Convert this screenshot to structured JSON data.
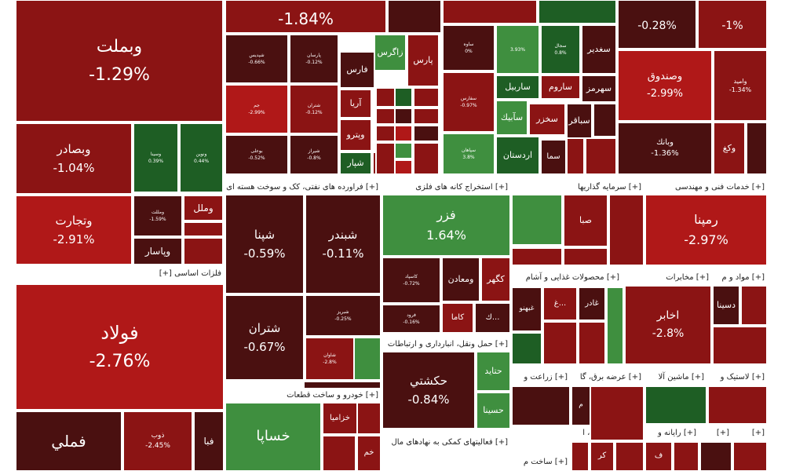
{
  "chart_data": {
    "type": "heatmap",
    "title": "",
    "color_scale": {
      "up_strong": "#2e9b2e",
      "up": "#3f8f3f",
      "up_dark": "#1e5e24",
      "flat": "#4a1010",
      "down": "#8b1414",
      "down_strong": "#b01818"
    },
    "sectors": [
      {
        "name": "فلزات اساسی [+]"
      },
      {
        "name": "[+] فراورده های نفتی، کک و سوخت هسته ای"
      },
      {
        "name": "[+] استخراج کانه های فلزی"
      },
      {
        "name": "[+] سرمایه گذاریها"
      },
      {
        "name": "[+] خدمات فنی و مهندسی"
      },
      {
        "name": "[+] محصولات غذایی و آشام"
      },
      {
        "name": "[+] مخابرات"
      },
      {
        "name": "[+] مواد و م"
      },
      {
        "name": "[+] حمل ونقل، انبارداری و ارتباطات"
      },
      {
        "name": "[+] خودرو و ساخت قطعات"
      },
      {
        "name": "[+] فعالیتهای کمکی به نهادهای مال"
      },
      {
        "name": "[+] زراعت و"
      },
      {
        "name": "[+] عرضه برق، گا"
      },
      {
        "name": "[+] ماشین آلا"
      },
      {
        "name": "[+] لاستیک و"
      },
      {
        "name": "[+] انبوه سازی، ا"
      },
      {
        "name": "[+] رایانه و"
      },
      {
        "name": "[+]"
      },
      {
        "name": "[+]"
      },
      {
        "name": "[+] ساخت م"
      }
    ],
    "tiles": [
      {
        "name": "وبملت",
        "change": "-1.29%",
        "state": "down"
      },
      {
        "name": "",
        "change": "-1.84%",
        "state": "down"
      },
      {
        "name": "",
        "change": "-0.28%",
        "state": "flat"
      },
      {
        "name": "",
        "change": "-1%",
        "state": "down"
      },
      {
        "name": "وبصادر",
        "change": "-1.04%",
        "state": "down"
      },
      {
        "name": "وسینا",
        "change": "0.39%",
        "state": "up_dark"
      },
      {
        "name": "ونوین",
        "change": "0.44%",
        "state": "up_dark"
      },
      {
        "name": "وتجارت",
        "change": "-2.91%",
        "state": "down_strong"
      },
      {
        "name": "ومللت",
        "change": "-1.59%",
        "state": "flat"
      },
      {
        "name": "وملل",
        "change": "",
        "state": "down"
      },
      {
        "name": "وپاسار",
        "change": "",
        "state": "flat"
      },
      {
        "name": "فولاد",
        "change": "-2.76%",
        "state": "down_strong"
      },
      {
        "name": "فملي",
        "change": "",
        "state": "flat"
      },
      {
        "name": "ذوب",
        "change": "-2.45%",
        "state": "down"
      },
      {
        "name": "فبا",
        "change": "",
        "state": "flat"
      },
      {
        "name": "شپدیس",
        "change": "-0.66%",
        "state": "flat"
      },
      {
        "name": "پارسان",
        "change": "-0.12%",
        "state": "flat"
      },
      {
        "name": "فارس",
        "change": "",
        "state": "flat"
      },
      {
        "name": "زاگرس",
        "change": "",
        "state": "up"
      },
      {
        "name": "پارس",
        "change": "",
        "state": "down"
      },
      {
        "name": "جم",
        "change": "-2.99%",
        "state": "down_strong"
      },
      {
        "name": "شتران",
        "change": "-0.12%",
        "state": "down"
      },
      {
        "name": "آريا",
        "change": "",
        "state": "down"
      },
      {
        "name": "بوعلی",
        "change": "-0.52%",
        "state": "flat"
      },
      {
        "name": "شیراز",
        "change": "-0.8%",
        "state": "flat"
      },
      {
        "name": "وپترو",
        "change": "",
        "state": "down"
      },
      {
        "name": "شپار",
        "change": "",
        "state": "up_dark"
      },
      {
        "name": "ساوه",
        "change": "0%",
        "state": "flat"
      },
      {
        "name": "",
        "change": "3.93%",
        "state": "up"
      },
      {
        "name": "سجال",
        "change": "0.8%",
        "state": "up_dark"
      },
      {
        "name": "سغدير",
        "change": "",
        "state": "flat"
      },
      {
        "name": "سفارس",
        "change": "-0.97%",
        "state": "down"
      },
      {
        "name": "ساربيل",
        "change": "",
        "state": "up_dark"
      },
      {
        "name": "ساروم",
        "change": "",
        "state": "down"
      },
      {
        "name": "سهرمز",
        "change": "",
        "state": "flat"
      },
      {
        "name": "سپاهان",
        "change": "3.8%",
        "state": "up"
      },
      {
        "name": "سآبيك",
        "change": "",
        "state": "up"
      },
      {
        "name": "سخزر",
        "change": "",
        "state": "down"
      },
      {
        "name": "سباقر",
        "change": "",
        "state": "flat"
      },
      {
        "name": "اردستان",
        "change": "",
        "state": "up_dark"
      },
      {
        "name": "سما",
        "change": "",
        "state": "flat"
      },
      {
        "name": "وصندوق",
        "change": "-2.99%",
        "state": "down_strong"
      },
      {
        "name": "واميد",
        "change": "-1.34%",
        "state": "down"
      },
      {
        "name": "وبانك",
        "change": "-1.36%",
        "state": "flat"
      },
      {
        "name": "وكغ",
        "change": "",
        "state": "down"
      },
      {
        "name": "شپنا",
        "change": "-0.59%",
        "state": "flat"
      },
      {
        "name": "شبندر",
        "change": "-0.11%",
        "state": "flat"
      },
      {
        "name": "شتران",
        "change": "-0.67%",
        "state": "flat"
      },
      {
        "name": "شبریز",
        "change": "-0.25%",
        "state": "flat"
      },
      {
        "name": "شاوان",
        "change": "-2.8%",
        "state": "down"
      },
      {
        "name": "فزر",
        "change": "1.64%",
        "state": "up"
      },
      {
        "name": "كاسپاد",
        "change": "-0.72%",
        "state": "flat"
      },
      {
        "name": "ومعادن",
        "change": "",
        "state": "flat"
      },
      {
        "name": "كگهر",
        "change": "",
        "state": "down"
      },
      {
        "name": "فرود",
        "change": "-0.16%",
        "state": "flat"
      },
      {
        "name": "كاما",
        "change": "",
        "state": "down"
      },
      {
        "name": "ك...",
        "change": "",
        "state": "flat"
      },
      {
        "name": "صبا",
        "change": "",
        "state": "down"
      },
      {
        "name": "رمپنا",
        "change": "-2.97%",
        "state": "down_strong"
      },
      {
        "name": "غبهنو",
        "change": "",
        "state": "flat"
      },
      {
        "name": "غادر",
        "change": "",
        "state": "flat"
      },
      {
        "name": "غ...",
        "change": "",
        "state": "down"
      },
      {
        "name": "اخابر",
        "change": "-2.8%",
        "state": "down"
      },
      {
        "name": "دسينا",
        "change": "",
        "state": "flat"
      },
      {
        "name": "حكشتي",
        "change": "-0.84%",
        "state": "flat"
      },
      {
        "name": "حتايد",
        "change": "",
        "state": "up"
      },
      {
        "name": "حسينا",
        "change": "",
        "state": "up"
      },
      {
        "name": "خساپا",
        "change": "",
        "state": "up"
      },
      {
        "name": "خزاميا",
        "change": "",
        "state": "down"
      },
      {
        "name": "خم",
        "change": "",
        "state": "down"
      },
      {
        "name": "م",
        "change": "",
        "state": "flat"
      },
      {
        "name": "كر",
        "change": "",
        "state": "down"
      },
      {
        "name": "ف",
        "change": "",
        "state": "down"
      }
    ]
  }
}
